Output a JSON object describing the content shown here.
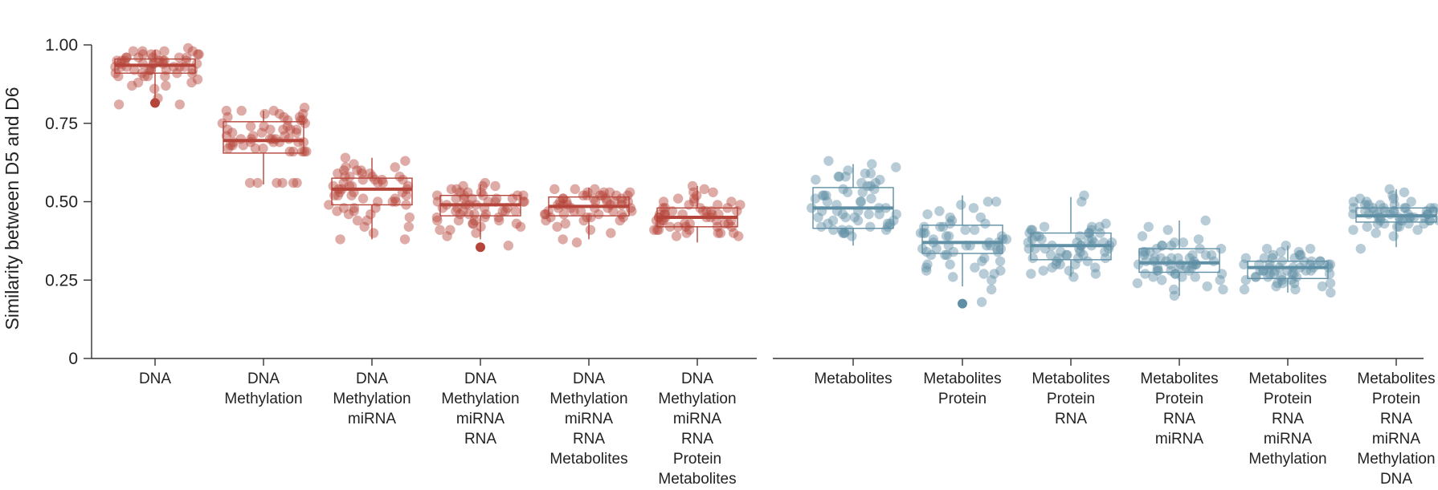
{
  "chart_data": {
    "type": "boxplot-with-jitter",
    "ylabel": "Similarity between D5 and D6",
    "ylim": [
      0,
      1.0
    ],
    "yticks": [
      {
        "value": 0,
        "label": "0"
      },
      {
        "value": 0.25,
        "label": "0.25"
      },
      {
        "value": 0.5,
        "label": "0.50"
      },
      {
        "value": 0.75,
        "label": "0.75"
      },
      {
        "value": 1.0,
        "label": "1.00"
      }
    ],
    "grid": false,
    "panels": [
      {
        "color": "#b5443a",
        "groups": [
          {
            "label_lines": [
              "DNA"
            ],
            "min": 0.81,
            "q1": 0.91,
            "median": 0.935,
            "q3": 0.955,
            "max": 0.985,
            "outliers": [
              0.815
            ],
            "points": [
              0.87,
              0.88,
              0.9,
              0.92,
              0.93,
              0.96,
              0.94,
              0.91,
              0.95,
              0.97,
              0.94,
              0.83,
              0.92,
              0.95,
              0.98,
              0.93,
              0.81,
              0.9,
              0.96,
              0.95,
              0.97,
              0.94,
              0.81,
              0.91,
              0.93,
              0.98,
              0.96,
              0.89,
              0.95,
              0.92,
              0.97,
              0.94,
              0.93,
              0.87,
              0.96,
              0.9,
              0.95,
              0.98,
              0.92,
              0.94,
              0.91,
              0.96,
              0.97,
              0.93,
              0.88,
              0.95,
              0.99,
              0.92,
              0.9,
              0.97,
              0.94,
              0.93,
              0.98,
              0.91,
              0.95,
              0.86,
              0.96,
              0.92
            ]
          },
          {
            "label_lines": [
              "DNA",
              "Methylation"
            ],
            "min": 0.555,
            "q1": 0.655,
            "median": 0.695,
            "q3": 0.755,
            "max": 0.79,
            "points": [
              0.7,
              0.73,
              0.78,
              0.67,
              0.56,
              0.73,
              0.8,
              0.66,
              0.69,
              0.77,
              0.72,
              0.56,
              0.68,
              0.76,
              0.7,
              0.66,
              0.74,
              0.79,
              0.69,
              0.71,
              0.56,
              0.66,
              0.73,
              0.78,
              0.7,
              0.67,
              0.75,
              0.69,
              0.56,
              0.72,
              0.77,
              0.68,
              0.7,
              0.74,
              0.66,
              0.79,
              0.71,
              0.69,
              0.76,
              0.67,
              0.73,
              0.56,
              0.7,
              0.78,
              0.69,
              0.72,
              0.75,
              0.68,
              0.79,
              0.7,
              0.66,
              0.74,
              0.77,
              0.71,
              0.69,
              0.56,
              0.73,
              0.76
            ]
          },
          {
            "label_lines": [
              "DNA",
              "Methylation",
              "miRNA"
            ],
            "min": 0.38,
            "q1": 0.49,
            "median": 0.54,
            "q3": 0.575,
            "max": 0.64,
            "points": [
              0.58,
              0.55,
              0.42,
              0.52,
              0.6,
              0.47,
              0.56,
              0.38,
              0.53,
              0.59,
              0.5,
              0.44,
              0.57,
              0.62,
              0.48,
              0.54,
              0.51,
              0.58,
              0.46,
              0.55,
              0.6,
              0.52,
              0.4,
              0.57,
              0.49,
              0.53,
              0.61,
              0.45,
              0.56,
              0.58,
              0.5,
              0.38,
              0.54,
              0.59,
              0.47,
              0.52,
              0.63,
              0.48,
              0.56,
              0.51,
              0.57,
              0.44,
              0.55,
              0.6,
              0.49,
              0.53,
              0.58,
              0.42,
              0.54,
              0.61,
              0.46,
              0.57,
              0.5,
              0.55,
              0.64,
              0.48,
              0.52,
              0.59
            ]
          },
          {
            "label_lines": [
              "DNA",
              "Methylation",
              "miRNA",
              "RNA"
            ],
            "min": 0.38,
            "q1": 0.455,
            "median": 0.49,
            "q3": 0.52,
            "max": 0.555,
            "outliers": [
              0.355
            ],
            "points": [
              0.44,
              0.49,
              0.52,
              0.46,
              0.41,
              0.5,
              0.54,
              0.47,
              0.43,
              0.51,
              0.55,
              0.48,
              0.45,
              0.5,
              0.53,
              0.42,
              0.47,
              0.52,
              0.49,
              0.44,
              0.51,
              0.46,
              0.54,
              0.48,
              0.43,
              0.5,
              0.56,
              0.47,
              0.45,
              0.52,
              0.49,
              0.41,
              0.51,
              0.46,
              0.53,
              0.48,
              0.44,
              0.5,
              0.55,
              0.47,
              0.52,
              0.45,
              0.49,
              0.43,
              0.51,
              0.39,
              0.53,
              0.46,
              0.5,
              0.48,
              0.52,
              0.44,
              0.47,
              0.51,
              0.42,
              0.55,
              0.36,
              0.4
            ]
          },
          {
            "label_lines": [
              "DNA",
              "Methylation",
              "miRNA",
              "RNA",
              "Metabolites"
            ],
            "min": 0.38,
            "q1": 0.455,
            "median": 0.485,
            "q3": 0.515,
            "max": 0.545,
            "points": [
              0.49,
              0.52,
              0.46,
              0.44,
              0.5,
              0.53,
              0.47,
              0.51,
              0.45,
              0.48,
              0.54,
              0.42,
              0.5,
              0.47,
              0.52,
              0.44,
              0.49,
              0.51,
              0.46,
              0.53,
              0.48,
              0.4,
              0.5,
              0.45,
              0.52,
              0.47,
              0.54,
              0.49,
              0.43,
              0.51,
              0.46,
              0.5,
              0.38,
              0.48,
              0.52,
              0.45,
              0.49,
              0.53,
              0.47,
              0.51,
              0.44,
              0.5,
              0.46,
              0.52,
              0.48,
              0.54,
              0.41,
              0.49,
              0.51,
              0.47,
              0.53,
              0.45,
              0.5,
              0.48,
              0.52,
              0.46,
              0.37,
              0.5
            ]
          },
          {
            "label_lines": [
              "DNA",
              "Methylation",
              "miRNA",
              "RNA",
              "Protein",
              "Metabolites"
            ],
            "min": 0.37,
            "q1": 0.42,
            "median": 0.45,
            "q3": 0.48,
            "max": 0.55,
            "points": [
              0.39,
              0.43,
              0.5,
              0.46,
              0.42,
              0.53,
              0.4,
              0.45,
              0.48,
              0.44,
              0.51,
              0.41,
              0.47,
              0.43,
              0.55,
              0.46,
              0.4,
              0.49,
              0.44,
              0.52,
              0.42,
              0.45,
              0.47,
              0.41,
              0.5,
              0.43,
              0.46,
              0.48,
              0.4,
              0.54,
              0.45,
              0.42,
              0.49,
              0.44,
              0.47,
              0.41,
              0.51,
              0.43,
              0.46,
              0.48,
              0.39,
              0.45,
              0.5,
              0.42,
              0.47,
              0.44,
              0.53,
              0.43,
              0.46,
              0.41,
              0.49,
              0.45,
              0.48,
              0.42,
              0.44,
              0.47,
              0.4,
              0.46
            ]
          }
        ]
      },
      {
        "color": "#5f8fa5",
        "groups": [
          {
            "label_lines": [
              "Metabolites"
            ],
            "min": 0.36,
            "q1": 0.415,
            "median": 0.48,
            "q3": 0.545,
            "max": 0.62,
            "points": [
              0.41,
              0.62,
              0.48,
              0.45,
              0.55,
              0.4,
              0.52,
              0.43,
              0.58,
              0.47,
              0.61,
              0.44,
              0.5,
              0.41,
              0.56,
              0.46,
              0.59,
              0.42,
              0.53,
              0.48,
              0.4,
              0.57,
              0.45,
              0.51,
              0.63,
              0.43,
              0.49,
              0.54,
              0.46,
              0.58,
              0.41,
              0.52,
              0.44,
              0.6,
              0.47,
              0.5,
              0.42,
              0.55,
              0.45,
              0.57,
              0.4,
              0.53,
              0.48,
              0.59,
              0.43,
              0.51,
              0.46,
              0.56,
              0.44,
              0.58,
              0.42,
              0.5,
              0.47,
              0.54,
              0.39,
              0.41,
              0.46,
              0.52
            ]
          },
          {
            "label_lines": [
              "Metabolites",
              "Protein"
            ],
            "min": 0.23,
            "q1": 0.335,
            "median": 0.37,
            "q3": 0.425,
            "max": 0.52,
            "outliers": [
              0.175
            ],
            "points": [
              0.42,
              0.35,
              0.28,
              0.38,
              0.45,
              0.3,
              0.36,
              0.25,
              0.4,
              0.33,
              0.5,
              0.27,
              0.37,
              0.42,
              0.31,
              0.35,
              0.48,
              0.29,
              0.39,
              0.34,
              0.44,
              0.26,
              0.36,
              0.41,
              0.32,
              0.38,
              0.46,
              0.3,
              0.35,
              0.43,
              0.28,
              0.37,
              0.4,
              0.33,
              0.49,
              0.36,
              0.22,
              0.39,
              0.34,
              0.45,
              0.31,
              0.38,
              0.42,
              0.35,
              0.27,
              0.4,
              0.36,
              0.47,
              0.33,
              0.39,
              0.29,
              0.43,
              0.37,
              0.34,
              0.5,
              0.18,
              0.36,
              0.41
            ]
          },
          {
            "label_lines": [
              "Metabolites",
              "Protein",
              "RNA"
            ],
            "min": 0.26,
            "q1": 0.315,
            "median": 0.36,
            "q3": 0.4,
            "max": 0.515,
            "points": [
              0.36,
              0.32,
              0.4,
              0.28,
              0.35,
              0.42,
              0.3,
              0.38,
              0.33,
              0.41,
              0.27,
              0.37,
              0.34,
              0.5,
              0.31,
              0.39,
              0.36,
              0.29,
              0.42,
              0.35,
              0.32,
              0.4,
              0.26,
              0.37,
              0.33,
              0.38,
              0.43,
              0.3,
              0.36,
              0.34,
              0.41,
              0.28,
              0.39,
              0.35,
              0.52,
              0.32,
              0.37,
              0.4,
              0.29,
              0.36,
              0.33,
              0.42,
              0.31,
              0.38,
              0.35,
              0.27,
              0.4,
              0.34,
              0.37,
              0.3,
              0.39,
              0.36,
              0.33,
              0.41,
              0.35,
              0.38,
              0.32,
              0.37
            ]
          },
          {
            "label_lines": [
              "Metabolites",
              "Protein",
              "RNA",
              "miRNA"
            ],
            "min": 0.2,
            "q1": 0.275,
            "median": 0.305,
            "q3": 0.35,
            "max": 0.44,
            "points": [
              0.32,
              0.28,
              0.35,
              0.25,
              0.3,
              0.37,
              0.27,
              0.33,
              0.29,
              0.44,
              0.26,
              0.31,
              0.36,
              0.22,
              0.3,
              0.34,
              0.28,
              0.32,
              0.39,
              0.27,
              0.31,
              0.24,
              0.35,
              0.29,
              0.33,
              0.2,
              0.3,
              0.36,
              0.28,
              0.32,
              0.41,
              0.26,
              0.31,
              0.34,
              0.23,
              0.29,
              0.33,
              0.38,
              0.27,
              0.3,
              0.35,
              0.25,
              0.32,
              0.28,
              0.37,
              0.3,
              0.33,
              0.26,
              0.31,
              0.42,
              0.29,
              0.34,
              0.27,
              0.32,
              0.3,
              0.36,
              0.22,
              0.31
            ]
          },
          {
            "label_lines": [
              "Metabolites",
              "Protein",
              "RNA",
              "miRNA",
              "Methylation"
            ],
            "min": 0.21,
            "q1": 0.255,
            "median": 0.29,
            "q3": 0.31,
            "max": 0.36,
            "points": [
              0.3,
              0.26,
              0.33,
              0.24,
              0.28,
              0.35,
              0.22,
              0.29,
              0.31,
              0.25,
              0.32,
              0.27,
              0.3,
              0.23,
              0.34,
              0.28,
              0.26,
              0.31,
              0.29,
              0.24,
              0.33,
              0.27,
              0.3,
              0.25,
              0.32,
              0.28,
              0.36,
              0.26,
              0.29,
              0.31,
              0.22,
              0.28,
              0.33,
              0.27,
              0.3,
              0.24,
              0.32,
              0.29,
              0.26,
              0.34,
              0.28,
              0.31,
              0.23,
              0.29,
              0.27,
              0.32,
              0.25,
              0.3,
              0.28,
              0.35,
              0.26,
              0.29,
              0.31,
              0.24,
              0.28,
              0.3,
              0.21,
              0.27
            ]
          },
          {
            "label_lines": [
              "Metabolites",
              "Protein",
              "RNA",
              "miRNA",
              "Methylation",
              "DNA"
            ],
            "min": 0.355,
            "q1": 0.435,
            "median": 0.455,
            "q3": 0.48,
            "max": 0.54,
            "points": [
              0.45,
              0.48,
              0.42,
              0.47,
              0.5,
              0.44,
              0.46,
              0.39,
              0.49,
              0.43,
              0.47,
              0.51,
              0.45,
              0.41,
              0.48,
              0.46,
              0.53,
              0.44,
              0.47,
              0.42,
              0.49,
              0.45,
              0.5,
              0.43,
              0.46,
              0.48,
              0.4,
              0.47,
              0.44,
              0.52,
              0.45,
              0.48,
              0.42,
              0.46,
              0.49,
              0.44,
              0.47,
              0.51,
              0.43,
              0.45,
              0.48,
              0.46,
              0.5,
              0.44,
              0.47,
              0.41,
              0.49,
              0.45,
              0.46,
              0.48,
              0.43,
              0.47,
              0.54,
              0.44,
              0.46,
              0.35,
              0.45,
              0.48
            ]
          }
        ]
      }
    ]
  }
}
